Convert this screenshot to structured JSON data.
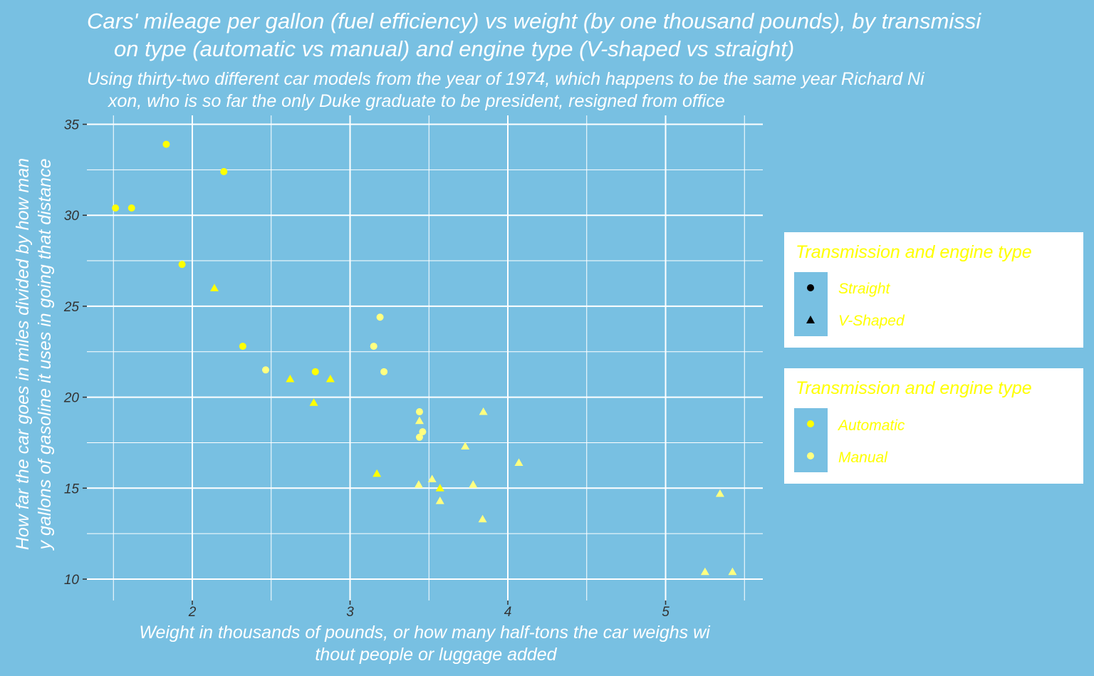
{
  "chart_data": {
    "type": "scatter",
    "title_lines": [
      "Cars' mileage per gallon (fuel efficiency) vs weight (by one thousand pounds), by transmissi",
      "on type (automatic vs manual) and engine type (V-shaped vs straight)"
    ],
    "subtitle_lines": [
      "Using thirty-two different car models from the year of 1974, which happens to be the same year Richard Ni",
      "xon, who is so far the only Duke graduate to be president, resigned from office"
    ],
    "xlabel_lines": [
      "Weight in thousands of pounds, or how many half-tons the car weighs wi",
      "thout people or luggage added"
    ],
    "ylabel_lines": [
      "How far the car goes in miles divided by how man",
      "y gallons of gasoline it uses in going that distance"
    ],
    "xlim": [
      1.3,
      5.6
    ],
    "ylim": [
      9.0,
      35.0
    ],
    "x_ticks": [
      2,
      3,
      4,
      5
    ],
    "x_tick_labels": [
      "2",
      "3",
      "4",
      "5"
    ],
    "x_minor_ticks": [
      1.5,
      2.5,
      3.5,
      4.5,
      5.5
    ],
    "y_ticks": [
      10,
      15,
      20,
      25,
      30,
      35
    ],
    "y_tick_labels": [
      "10",
      "15",
      "20",
      "25",
      "30",
      "35"
    ],
    "y_minor_ticks": [
      12.5,
      17.5,
      22.5,
      27.5,
      32.5
    ],
    "grid": true,
    "series": [
      {
        "name": "Automatic",
        "color": "#ffff00"
      },
      {
        "name": "Manual",
        "color": "#ffff80"
      }
    ],
    "points": [
      {
        "x": 1.513,
        "y": 30.4,
        "shape": "circle",
        "series": "Automatic"
      },
      {
        "x": 1.615,
        "y": 30.4,
        "shape": "circle",
        "series": "Automatic"
      },
      {
        "x": 1.835,
        "y": 33.9,
        "shape": "circle",
        "series": "Automatic"
      },
      {
        "x": 1.935,
        "y": 27.3,
        "shape": "circle",
        "series": "Automatic"
      },
      {
        "x": 2.2,
        "y": 32.4,
        "shape": "circle",
        "series": "Automatic"
      },
      {
        "x": 2.14,
        "y": 26.0,
        "shape": "triangle",
        "series": "Automatic"
      },
      {
        "x": 2.32,
        "y": 22.8,
        "shape": "circle",
        "series": "Automatic"
      },
      {
        "x": 2.465,
        "y": 21.5,
        "shape": "circle",
        "series": "Manual"
      },
      {
        "x": 2.62,
        "y": 21.0,
        "shape": "triangle",
        "series": "Automatic"
      },
      {
        "x": 2.78,
        "y": 21.4,
        "shape": "circle",
        "series": "Automatic"
      },
      {
        "x": 2.77,
        "y": 19.7,
        "shape": "triangle",
        "series": "Automatic"
      },
      {
        "x": 2.875,
        "y": 21.0,
        "shape": "triangle",
        "series": "Automatic"
      },
      {
        "x": 3.15,
        "y": 22.8,
        "shape": "circle",
        "series": "Manual"
      },
      {
        "x": 3.19,
        "y": 24.4,
        "shape": "circle",
        "series": "Manual"
      },
      {
        "x": 3.215,
        "y": 21.4,
        "shape": "circle",
        "series": "Manual"
      },
      {
        "x": 3.17,
        "y": 15.8,
        "shape": "triangle",
        "series": "Automatic"
      },
      {
        "x": 3.44,
        "y": 19.2,
        "shape": "circle",
        "series": "Manual"
      },
      {
        "x": 3.44,
        "y": 18.7,
        "shape": "triangle",
        "series": "Manual"
      },
      {
        "x": 3.46,
        "y": 18.1,
        "shape": "circle",
        "series": "Manual"
      },
      {
        "x": 3.44,
        "y": 17.8,
        "shape": "circle",
        "series": "Manual"
      },
      {
        "x": 3.435,
        "y": 15.2,
        "shape": "triangle",
        "series": "Manual"
      },
      {
        "x": 3.52,
        "y": 15.5,
        "shape": "triangle",
        "series": "Manual"
      },
      {
        "x": 3.57,
        "y": 15.0,
        "shape": "triangle",
        "series": "Automatic"
      },
      {
        "x": 3.57,
        "y": 14.3,
        "shape": "triangle",
        "series": "Manual"
      },
      {
        "x": 3.73,
        "y": 17.3,
        "shape": "triangle",
        "series": "Manual"
      },
      {
        "x": 3.78,
        "y": 15.2,
        "shape": "triangle",
        "series": "Manual"
      },
      {
        "x": 3.845,
        "y": 19.2,
        "shape": "triangle",
        "series": "Manual"
      },
      {
        "x": 3.84,
        "y": 13.3,
        "shape": "triangle",
        "series": "Manual"
      },
      {
        "x": 4.07,
        "y": 16.4,
        "shape": "triangle",
        "series": "Manual"
      },
      {
        "x": 5.25,
        "y": 10.4,
        "shape": "triangle",
        "series": "Manual"
      },
      {
        "x": 5.345,
        "y": 14.7,
        "shape": "triangle",
        "series": "Manual"
      },
      {
        "x": 5.424,
        "y": 10.4,
        "shape": "triangle",
        "series": "Manual"
      }
    ],
    "legends": [
      {
        "title": "Transmission and engine type",
        "items": [
          {
            "label": "Straight",
            "shape": "circle"
          },
          {
            "label": "V-Shaped",
            "shape": "triangle"
          }
        ]
      },
      {
        "title": "Transmission and engine type",
        "items": [
          {
            "label": "Automatic",
            "color": "#ffff00"
          },
          {
            "label": "Manual",
            "color": "#ffff80"
          }
        ]
      }
    ],
    "legend_position": "right",
    "colors": {
      "background": "#78c0e2",
      "grid": "#ffffff",
      "text": "#ffffff",
      "tick_text": "#333333",
      "legend_text": "#ffff00"
    }
  }
}
